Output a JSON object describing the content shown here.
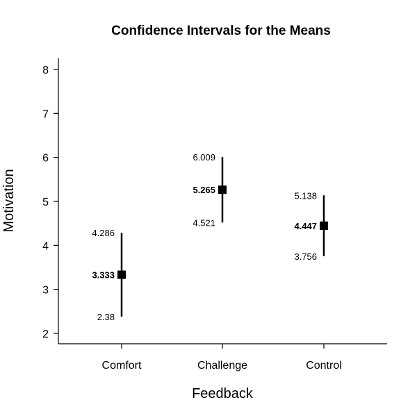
{
  "chart_data": {
    "type": "errorbar",
    "title": "Confidence Intervals for the Means",
    "xlabel": "Feedback",
    "ylabel": "Motivation",
    "ylim": [
      2,
      8
    ],
    "yticks": [
      2,
      3,
      4,
      5,
      6,
      7,
      8
    ],
    "grid": false,
    "categories": [
      "Comfort",
      "Challenge",
      "Control"
    ],
    "points": [
      {
        "category": "Comfort",
        "mean": 3.333,
        "lower": 2.38,
        "upper": 4.286,
        "mean_label": "3.333",
        "lower_label": "2.38",
        "upper_label": "4.286"
      },
      {
        "category": "Challenge",
        "mean": 5.265,
        "lower": 4.521,
        "upper": 6.009,
        "mean_label": "5.265",
        "lower_label": "4.521",
        "upper_label": "6.009"
      },
      {
        "category": "Control",
        "mean": 4.447,
        "lower": 3.756,
        "upper": 5.138,
        "mean_label": "4.447",
        "lower_label": "3.756",
        "upper_label": "5.138"
      }
    ]
  }
}
